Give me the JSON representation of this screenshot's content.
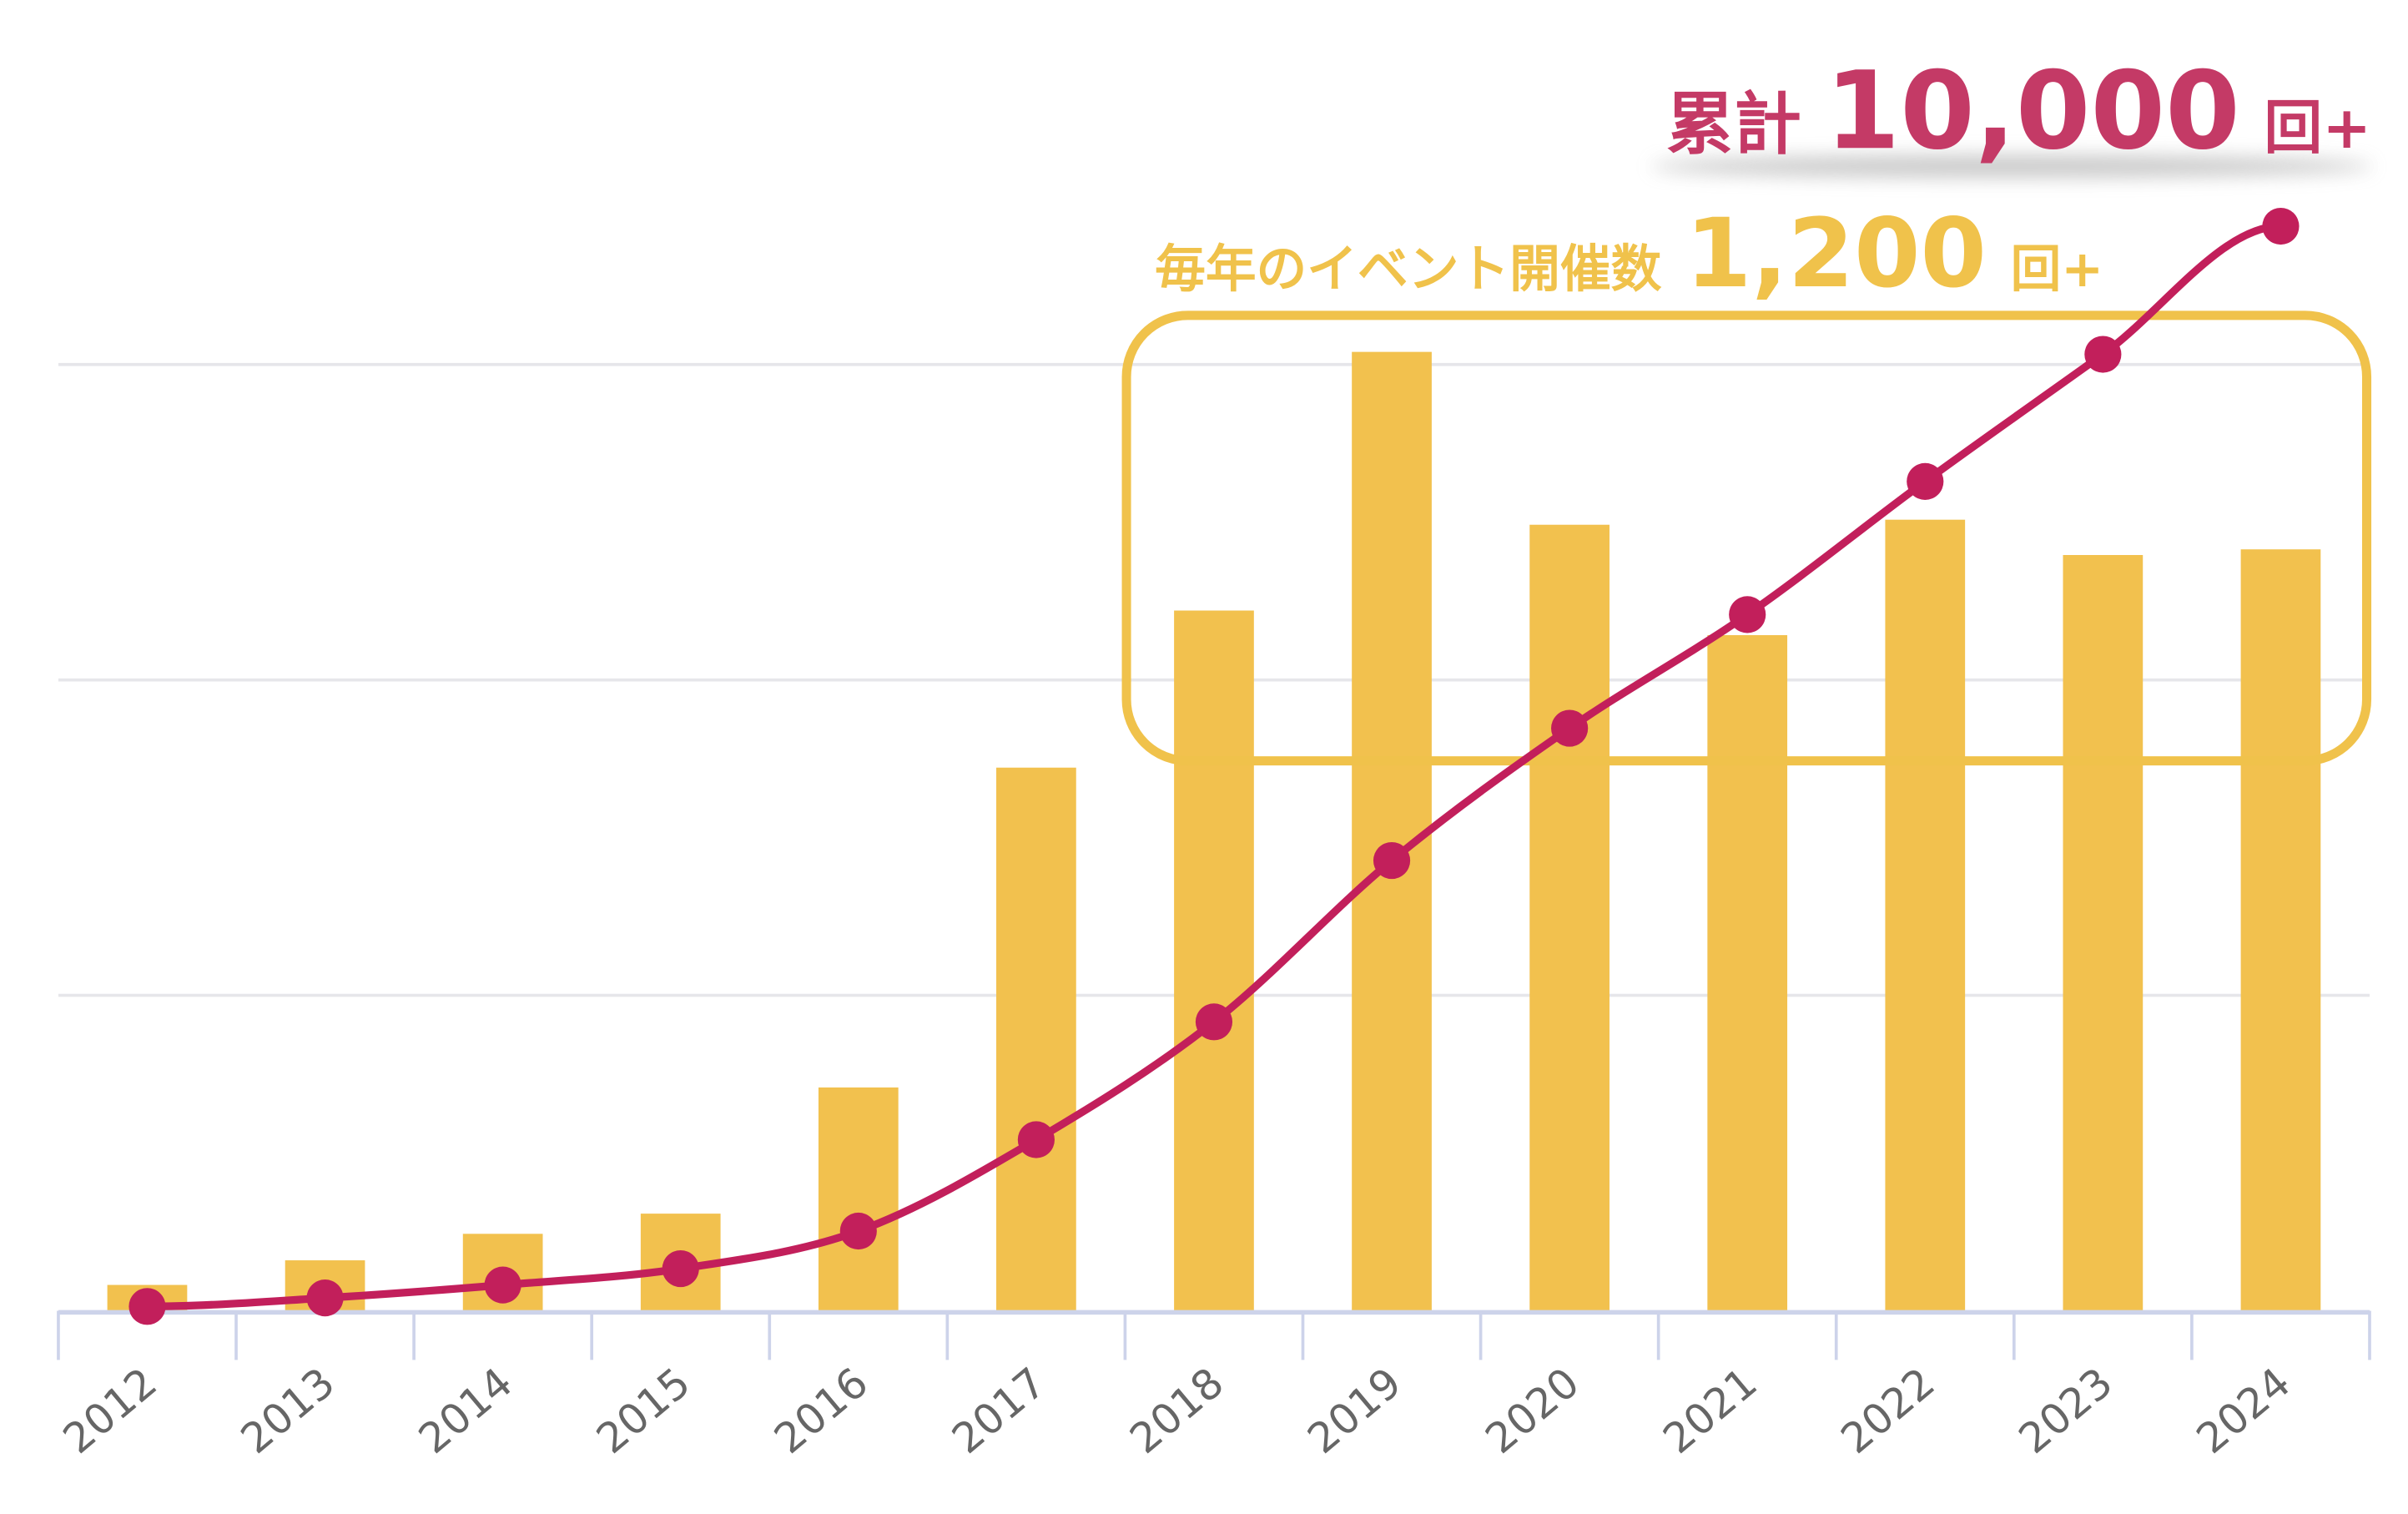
{
  "chart_data": {
    "type": "bar+line",
    "title": "",
    "xlabel": "",
    "ylabel": "",
    "categories": [
      "2012",
      "2013",
      "2014",
      "2015",
      "2016",
      "2017",
      "2018",
      "2019",
      "2020",
      "2021",
      "2022",
      "2023",
      "2024"
    ],
    "series": [
      {
        "type": "bar",
        "axis": "left",
        "color": "#F2C14E",
        "values": [
          41,
          80,
          122,
          154,
          354,
          861,
          1110,
          1520,
          1246,
          1071,
          1254,
          1198,
          1207
        ]
      },
      {
        "type": "line",
        "axis": "right",
        "color": "#C21F5B",
        "values": [
          41,
          121,
          243,
          397,
          751,
          1612,
          2722,
          4242,
          5488,
          6559,
          7813,
          9011,
          10218
        ]
      }
    ],
    "ylim": [
      0,
      1500
    ],
    "y2lim": [
      0,
      8915
    ],
    "gridlines": [
      500,
      1000,
      1500
    ],
    "grid": true,
    "legend": "none",
    "highlight_box": {
      "from": "2018",
      "to": "2024",
      "color": "#F0C24B"
    },
    "annotations": {
      "cumulative": {
        "label": "累計",
        "value": "10,000",
        "unit": "回+",
        "color": "#C43A66"
      },
      "annual": {
        "label": "毎年のイベント開催数",
        "value": "1,200",
        "unit": "回+",
        "color": "#F0C24B"
      }
    }
  }
}
